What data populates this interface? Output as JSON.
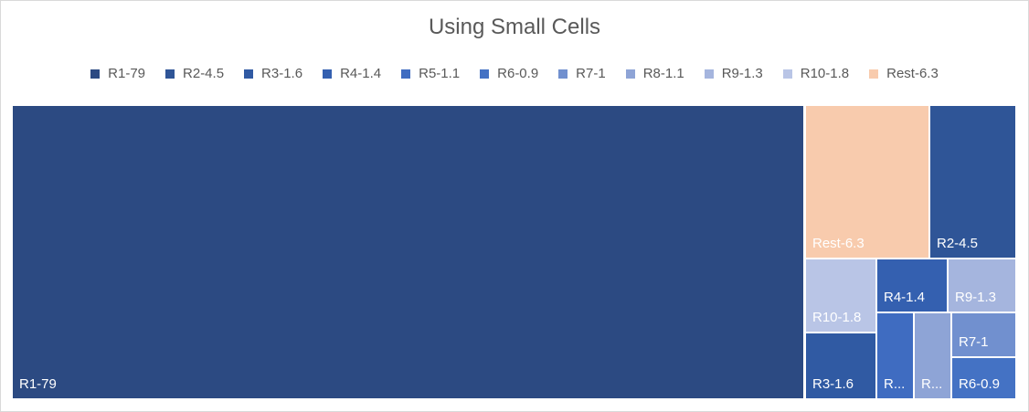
{
  "chart_data": {
    "type": "treemap",
    "title": "Using Small Cells",
    "legend_position": "top",
    "series": [
      {
        "name": "R1-79",
        "value": 79,
        "label": "R1-79",
        "color": "#2c4a82"
      },
      {
        "name": "R2-4.5",
        "value": 4.5,
        "label": "R2-4.5",
        "color": "#2f5597"
      },
      {
        "name": "R3-1.6",
        "value": 1.6,
        "label": "R3-1.6",
        "color": "#305aa3"
      },
      {
        "name": "R4-1.4",
        "value": 1.4,
        "label": "R4-1.4",
        "color": "#3460b0"
      },
      {
        "name": "R5-1.1",
        "value": 1.1,
        "label": "R...",
        "color": "#3f6cc1"
      },
      {
        "name": "R6-0.9",
        "value": 0.9,
        "label": "R6-0.9",
        "color": "#4472c4"
      },
      {
        "name": "R7-1",
        "value": 1,
        "label": "R7-1",
        "color": "#7190cf"
      },
      {
        "name": "R8-1.1",
        "value": 1.1,
        "label": "R...",
        "color": "#8ea4d6"
      },
      {
        "name": "R9-1.3",
        "value": 1.3,
        "label": "R9-1.3",
        "color": "#a5b5de"
      },
      {
        "name": "R10-1.8",
        "value": 1.8,
        "label": "R10-1.8",
        "color": "#b9c5e6"
      },
      {
        "name": "Rest-6.3",
        "value": 6.3,
        "label": "Rest-6.3",
        "color": "#f8cbad"
      }
    ]
  }
}
